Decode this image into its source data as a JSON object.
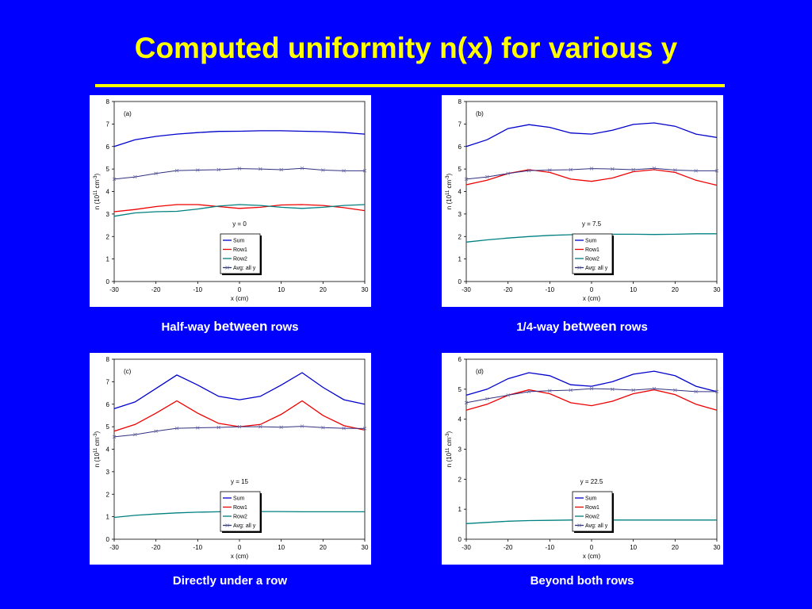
{
  "slide": {
    "title": "Computed uniformity n(x) for various y",
    "captions": [
      {
        "parts": [
          {
            "text": "Half-way ",
            "big": false
          },
          {
            "text": "between",
            "big": true
          },
          {
            "text": " rows",
            "big": false
          }
        ]
      },
      {
        "parts": [
          {
            "text": "1/4-way ",
            "big": false
          },
          {
            "text": "between",
            "big": true
          },
          {
            "text": " rows",
            "big": false
          }
        ]
      },
      {
        "parts": [
          {
            "text": "Directly under a row",
            "big": false
          }
        ]
      },
      {
        "parts": [
          {
            "text": "Beyond both rows",
            "big": false
          }
        ]
      }
    ]
  },
  "colors": {
    "background": "#0000ff",
    "title": "#ffff00",
    "caption": "#ffffff",
    "sum": "#0000cc",
    "row1": "#ee0000",
    "row2": "#008080",
    "avg": "#303080"
  },
  "chart_data": [
    {
      "type": "line",
      "panel_label": "(a)",
      "annotation": "y = 0",
      "xlabel": "x (cm)",
      "ylabel_base": "n (10",
      "ylabel_exp1": "11",
      "ylabel_mid": " cm",
      "ylabel_exp2": "-3",
      "ylabel_end": ")",
      "xlim": [
        -30,
        30
      ],
      "ylim": [
        0,
        8
      ],
      "xticks": [
        -30,
        -20,
        -10,
        0,
        10,
        20,
        30
      ],
      "yticks": [
        0,
        1,
        2,
        3,
        4,
        5,
        6,
        7,
        8
      ],
      "x": [
        -30,
        -25,
        -20,
        -15,
        -10,
        -5,
        0,
        5,
        10,
        15,
        20,
        25,
        30
      ],
      "series": [
        {
          "name": "Sum",
          "key": "sum",
          "values": [
            6.0,
            6.3,
            6.45,
            6.55,
            6.62,
            6.67,
            6.68,
            6.7,
            6.7,
            6.68,
            6.66,
            6.62,
            6.55
          ]
        },
        {
          "name": "Row1",
          "key": "row1",
          "values": [
            3.1,
            3.2,
            3.33,
            3.42,
            3.42,
            3.33,
            3.25,
            3.3,
            3.4,
            3.42,
            3.38,
            3.28,
            3.15
          ]
        },
        {
          "name": "Row2",
          "key": "row2",
          "values": [
            2.9,
            3.05,
            3.1,
            3.12,
            3.22,
            3.35,
            3.42,
            3.38,
            3.3,
            3.25,
            3.3,
            3.38,
            3.42
          ]
        },
        {
          "name": "Avg: all y",
          "key": "avg",
          "values": [
            4.55,
            4.65,
            4.8,
            4.93,
            4.95,
            4.97,
            5.02,
            5.0,
            4.97,
            5.03,
            4.95,
            4.92,
            4.92
          ]
        }
      ],
      "legend": "center-right"
    },
    {
      "type": "line",
      "panel_label": "(b)",
      "annotation": "y = 7.5",
      "xlabel": "x (cm)",
      "ylabel_base": "n (10",
      "ylabel_exp1": "11",
      "ylabel_mid": " cm",
      "ylabel_exp2": "-3",
      "ylabel_end": ")",
      "xlim": [
        -30,
        30
      ],
      "ylim": [
        0,
        8
      ],
      "xticks": [
        -30,
        -20,
        -10,
        0,
        10,
        20,
        30
      ],
      "yticks": [
        0,
        1,
        2,
        3,
        4,
        5,
        6,
        7,
        8
      ],
      "x": [
        -30,
        -25,
        -20,
        -15,
        -10,
        -5,
        0,
        5,
        10,
        15,
        20,
        25,
        30
      ],
      "series": [
        {
          "name": "Sum",
          "key": "sum",
          "values": [
            6.0,
            6.3,
            6.8,
            6.97,
            6.85,
            6.6,
            6.55,
            6.72,
            6.98,
            7.05,
            6.9,
            6.55,
            6.4
          ]
        },
        {
          "name": "Row1",
          "key": "row1",
          "values": [
            4.3,
            4.5,
            4.8,
            4.97,
            4.85,
            4.55,
            4.45,
            4.6,
            4.88,
            4.97,
            4.85,
            4.5,
            4.28
          ]
        },
        {
          "name": "Row2",
          "key": "row2",
          "values": [
            1.75,
            1.85,
            1.93,
            2.0,
            2.05,
            2.08,
            2.1,
            2.1,
            2.1,
            2.09,
            2.1,
            2.12,
            2.12
          ]
        },
        {
          "name": "Avg: all y",
          "key": "avg",
          "values": [
            4.55,
            4.65,
            4.8,
            4.93,
            4.95,
            4.97,
            5.02,
            5.0,
            4.97,
            5.03,
            4.95,
            4.92,
            4.92
          ]
        }
      ],
      "legend": "center-right"
    },
    {
      "type": "line",
      "panel_label": "(c)",
      "annotation": "y = 15",
      "xlabel": "x (cm)",
      "ylabel_base": "n (10",
      "ylabel_exp1": "11",
      "ylabel_mid": " cm",
      "ylabel_exp2": "-3",
      "ylabel_end": ")",
      "xlim": [
        -30,
        30
      ],
      "ylim": [
        0,
        8
      ],
      "xticks": [
        -30,
        -20,
        -10,
        0,
        10,
        20,
        30
      ],
      "yticks": [
        0,
        1,
        2,
        3,
        4,
        5,
        6,
        7,
        8
      ],
      "x": [
        -30,
        -25,
        -20,
        -15,
        -10,
        -5,
        0,
        5,
        10,
        15,
        20,
        25,
        30
      ],
      "series": [
        {
          "name": "Sum",
          "key": "sum",
          "values": [
            5.8,
            6.1,
            6.7,
            7.3,
            6.85,
            6.35,
            6.2,
            6.35,
            6.85,
            7.4,
            6.75,
            6.2,
            6.0
          ]
        },
        {
          "name": "Row1",
          "key": "row1",
          "values": [
            4.8,
            5.1,
            5.6,
            6.15,
            5.6,
            5.15,
            5.0,
            5.1,
            5.55,
            6.15,
            5.5,
            5.05,
            4.85
          ]
        },
        {
          "name": "Row2",
          "key": "row2",
          "values": [
            0.97,
            1.06,
            1.12,
            1.17,
            1.2,
            1.22,
            1.23,
            1.23,
            1.23,
            1.22,
            1.22,
            1.22,
            1.22
          ]
        },
        {
          "name": "Avg: all y",
          "key": "avg",
          "values": [
            4.55,
            4.65,
            4.8,
            4.93,
            4.95,
            4.97,
            5.0,
            5.0,
            4.98,
            5.02,
            4.96,
            4.93,
            4.92
          ]
        }
      ],
      "legend": "center-right"
    },
    {
      "type": "line",
      "panel_label": "(d)",
      "annotation": "y = 22.5",
      "xlabel": "x (cm)",
      "ylabel_base": "n (10",
      "ylabel_exp1": "11",
      "ylabel_mid": " cm",
      "ylabel_exp2": "-3",
      "ylabel_end": ")",
      "xlim": [
        -30,
        30
      ],
      "ylim": [
        0,
        6
      ],
      "xticks": [
        -30,
        -20,
        -10,
        0,
        10,
        20,
        30
      ],
      "yticks": [
        0,
        1,
        2,
        3,
        4,
        5,
        6
      ],
      "x": [
        -30,
        -25,
        -20,
        -15,
        -10,
        -5,
        0,
        5,
        10,
        15,
        20,
        25,
        30
      ],
      "series": [
        {
          "name": "Sum",
          "key": "sum",
          "values": [
            4.8,
            5.0,
            5.35,
            5.55,
            5.45,
            5.15,
            5.1,
            5.25,
            5.5,
            5.6,
            5.45,
            5.1,
            4.92
          ]
        },
        {
          "name": "Row1",
          "key": "row1",
          "values": [
            4.3,
            4.5,
            4.8,
            4.98,
            4.85,
            4.55,
            4.45,
            4.6,
            4.85,
            4.98,
            4.82,
            4.5,
            4.3
          ]
        },
        {
          "name": "Row2",
          "key": "row2",
          "values": [
            0.52,
            0.56,
            0.6,
            0.62,
            0.63,
            0.64,
            0.64,
            0.64,
            0.64,
            0.64,
            0.64,
            0.64,
            0.64
          ]
        },
        {
          "name": "Avg: all y",
          "key": "avg",
          "values": [
            4.55,
            4.68,
            4.8,
            4.92,
            4.95,
            4.97,
            5.02,
            5.0,
            4.97,
            5.02,
            4.97,
            4.92,
            4.92
          ]
        }
      ],
      "legend": "center-right"
    }
  ]
}
